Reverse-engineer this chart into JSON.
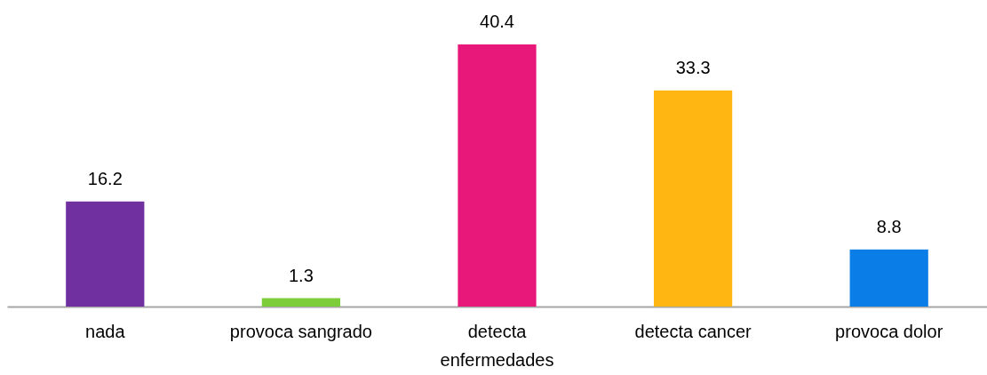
{
  "chart_data": {
    "type": "bar",
    "categories": [
      "nada",
      "provoca sangrado",
      "detecta enfermedades",
      "detecta cancer",
      "provoca dolor"
    ],
    "values": [
      16.2,
      1.3,
      40.4,
      33.3,
      8.8
    ],
    "colors": [
      "#7030a0",
      "#7dcc39",
      "#e8187a",
      "#ffb612",
      "#0a7ee6"
    ],
    "data_labels": true
  }
}
